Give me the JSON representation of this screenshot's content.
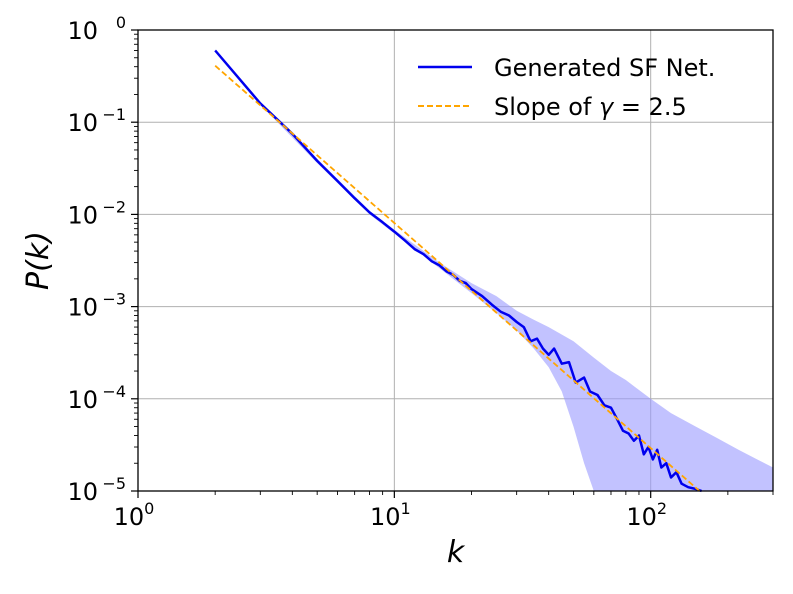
{
  "chart_data": {
    "type": "line",
    "title": "",
    "xlabel": "k",
    "ylabel": "P(k)",
    "xscale": "log",
    "yscale": "log",
    "xlim": [
      1,
      300
    ],
    "ylim": [
      1e-05,
      1
    ],
    "grid": true,
    "legend_position": "top-right",
    "x_tick_labels": [
      {
        "value": 1,
        "base": "10",
        "exp": "0"
      },
      {
        "value": 10,
        "base": "10",
        "exp": "1"
      },
      {
        "value": 100,
        "base": "10",
        "exp": "2"
      }
    ],
    "y_tick_labels": [
      {
        "value": 1,
        "base": "10",
        "exp": "0"
      },
      {
        "value": 0.1,
        "base": "10",
        "exp": "−1"
      },
      {
        "value": 0.01,
        "base": "10",
        "exp": "−2"
      },
      {
        "value": 0.001,
        "base": "10",
        "exp": "−3"
      },
      {
        "value": 0.0001,
        "base": "10",
        "exp": "−4"
      },
      {
        "value": 1e-05,
        "base": "10",
        "exp": "−5"
      }
    ],
    "legend": {
      "series_label": "Generated SF Net.",
      "slope_prefix": "Slope of ",
      "slope_symbol": "γ",
      "slope_suffix": " = 2.5"
    },
    "series": [
      {
        "name": "Generated SF Net.",
        "style": "solid",
        "color": "#0000ee",
        "points": [
          [
            2,
            0.6
          ],
          [
            3,
            0.16
          ],
          [
            4,
            0.075
          ],
          [
            5,
            0.038
          ],
          [
            6,
            0.023
          ],
          [
            7,
            0.015
          ],
          [
            8,
            0.0105
          ],
          [
            9,
            0.0082
          ],
          [
            10,
            0.0065
          ],
          [
            11,
            0.0052
          ],
          [
            12,
            0.0042
          ],
          [
            13,
            0.0037
          ],
          [
            14,
            0.0031
          ],
          [
            15,
            0.0028
          ],
          [
            16,
            0.0024
          ],
          [
            17,
            0.0022
          ],
          [
            18,
            0.0019
          ],
          [
            19,
            0.0018
          ],
          [
            20,
            0.00155
          ],
          [
            22,
            0.0013
          ],
          [
            24,
            0.00105
          ],
          [
            26,
            0.00088
          ],
          [
            28,
            0.0008
          ],
          [
            30,
            0.00068
          ],
          [
            32,
            0.0006
          ],
          [
            34,
            0.00042
          ],
          [
            36,
            0.00045
          ],
          [
            38,
            0.00035
          ],
          [
            40,
            0.0003
          ],
          [
            42,
            0.00035
          ],
          [
            45,
            0.00024
          ],
          [
            48,
            0.00025
          ],
          [
            51,
            0.00015
          ],
          [
            55,
            0.00017
          ],
          [
            58,
            0.00012
          ],
          [
            62,
            0.00011
          ],
          [
            66,
            8.5e-05
          ],
          [
            70,
            8e-05
          ],
          [
            74,
            6e-05
          ],
          [
            78,
            4.5e-05
          ],
          [
            82,
            4.2e-05
          ],
          [
            86,
            3.5e-05
          ],
          [
            90,
            4e-05
          ],
          [
            94,
            2.5e-05
          ],
          [
            98,
            3e-05
          ],
          [
            102,
            2.2e-05
          ],
          [
            106,
            2.8e-05
          ],
          [
            110,
            1.8e-05
          ],
          [
            115,
            2e-05
          ],
          [
            120,
            1.4e-05
          ],
          [
            126,
            1.6e-05
          ],
          [
            132,
            1.2e-05
          ],
          [
            140,
            1.1e-05
          ],
          [
            150,
            1.05e-05
          ],
          [
            158,
            1e-05
          ]
        ]
      },
      {
        "name": "Slope of γ = 2.5",
        "style": "dashed",
        "color": "#ffa500",
        "points": [
          [
            2,
            0.41
          ],
          [
            155,
            8.5e-06
          ]
        ]
      }
    ],
    "band": {
      "name": "spread",
      "color": "#9999ff",
      "upper": [
        [
          2,
          0.62
        ],
        [
          3,
          0.165
        ],
        [
          5,
          0.04
        ],
        [
          8,
          0.011
        ],
        [
          10,
          0.0068
        ],
        [
          15,
          0.003
        ],
        [
          20,
          0.0018
        ],
        [
          25,
          0.0013
        ],
        [
          30,
          0.0009
        ],
        [
          35,
          0.00072
        ],
        [
          40,
          0.0006
        ],
        [
          50,
          0.00042
        ],
        [
          60,
          0.00028
        ],
        [
          70,
          0.0002
        ],
        [
          80,
          0.00016
        ],
        [
          100,
          0.0001
        ],
        [
          120,
          7e-05
        ],
        [
          150,
          5e-05
        ],
        [
          180,
          3.8e-05
        ],
        [
          220,
          2.8e-05
        ],
        [
          260,
          2.2e-05
        ],
        [
          300,
          1.8e-05
        ]
      ],
      "lower": [
        [
          2,
          0.58
        ],
        [
          3,
          0.155
        ],
        [
          5,
          0.036
        ],
        [
          8,
          0.01
        ],
        [
          10,
          0.0062
        ],
        [
          15,
          0.0026
        ],
        [
          20,
          0.0014
        ],
        [
          25,
          0.00085
        ],
        [
          30,
          0.00055
        ],
        [
          35,
          0.00035
        ],
        [
          40,
          0.00022
        ],
        [
          45,
          0.00012
        ],
        [
          50,
          5e-05
        ],
        [
          55,
          2e-05
        ],
        [
          60,
          1e-05
        ],
        [
          300,
          1e-05
        ]
      ]
    }
  }
}
